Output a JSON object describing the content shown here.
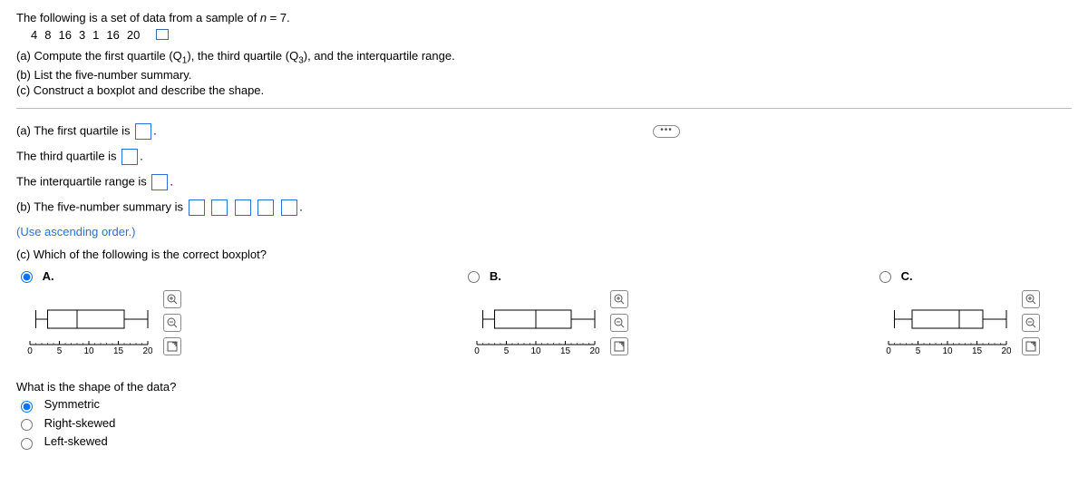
{
  "intro_prefix": "The following is a set of data from a sample of ",
  "intro_var": "n",
  "intro_suffix": " = 7.",
  "data_values": [
    "4",
    "8",
    "16",
    "3",
    "1",
    "16",
    "20"
  ],
  "part_a": "(a) Compute the first quartile (Q",
  "part_a_sub1": "1",
  "part_a_mid": "), the third quartile (Q",
  "part_a_sub3": "3",
  "part_a_end": "), and the interquartile range.",
  "part_b": "(b) List the five-number summary.",
  "part_c": "(c) Construct a boxplot and describe the shape.",
  "ans_a1": "(a) The first quartile is ",
  "ans_a2": "The third quartile is ",
  "ans_a3": "The interquartile range is ",
  "ans_b": "(b) The five-number summary is ",
  "ans_b_hint": "(Use ascending order.)",
  "ans_c_q": "(c) Which of the following is the correct boxplot?",
  "period": ".",
  "options": {
    "A": {
      "label": "A.",
      "selected": true
    },
    "B": {
      "label": "B.",
      "selected": false
    },
    "C": {
      "label": "C.",
      "selected": false
    }
  },
  "axis": {
    "min": 0,
    "max": 20,
    "ticks": [
      0,
      5,
      10,
      15,
      20
    ],
    "width": 130
  },
  "boxplots": {
    "A": {
      "whisker_lo": 1,
      "q1": 3,
      "median": 8,
      "q3": 16,
      "whisker_hi": 20
    },
    "B": {
      "whisker_lo": 1,
      "q1": 3,
      "median": 10,
      "q3": 16,
      "whisker_hi": 20
    },
    "C": {
      "whisker_lo": 1,
      "q1": 4,
      "median": 12,
      "q3": 16,
      "whisker_hi": 20
    }
  },
  "shape_q": "What is the shape of the data?",
  "shape_opts": [
    {
      "label": "Symmetric",
      "selected": true
    },
    {
      "label": "Right-skewed",
      "selected": false
    },
    {
      "label": "Left-skewed",
      "selected": false
    }
  ],
  "colors": {
    "link": "#2a6fd6",
    "stroke": "#000"
  }
}
